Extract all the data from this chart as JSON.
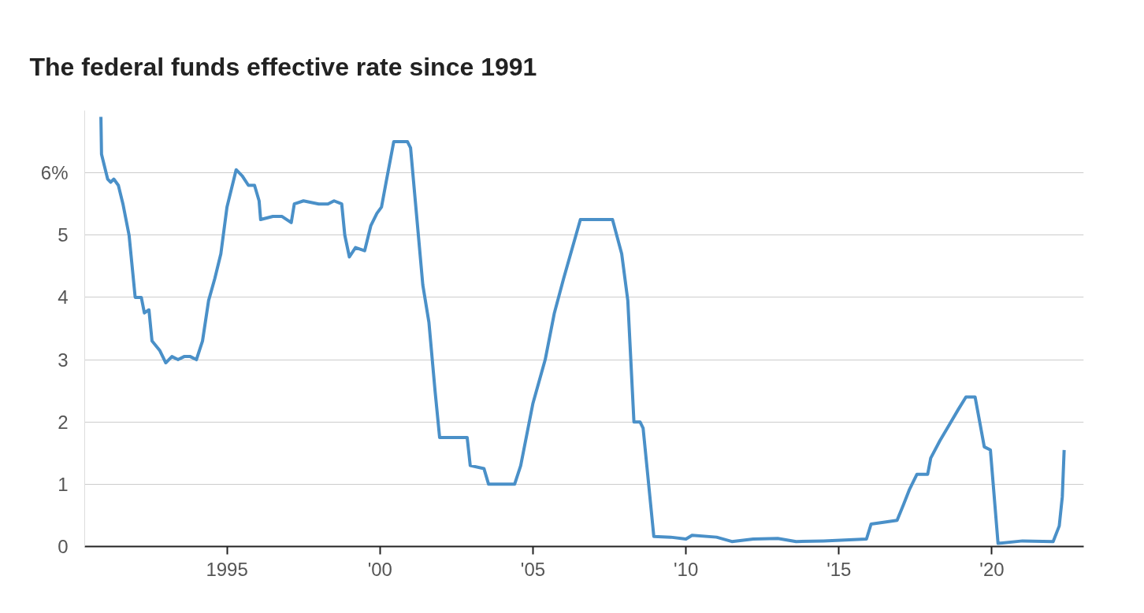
{
  "chart_data": {
    "type": "line",
    "title": "The federal funds effective rate since 1991",
    "x": [
      1990.88,
      1990.9,
      1991.0,
      1991.1,
      1991.2,
      1991.3,
      1991.45,
      1991.6,
      1991.8,
      1992.0,
      1992.2,
      1992.3,
      1992.45,
      1992.55,
      1992.8,
      1993.0,
      1993.2,
      1993.4,
      1993.6,
      1993.8,
      1994.0,
      1994.2,
      1994.4,
      1994.6,
      1994.8,
      1995.0,
      1995.3,
      1995.5,
      1995.7,
      1995.9,
      1996.05,
      1996.1,
      1996.5,
      1996.8,
      1997.1,
      1997.2,
      1997.5,
      1998.0,
      1998.3,
      1998.5,
      1998.75,
      1998.85,
      1999.0,
      1999.2,
      1999.5,
      1999.7,
      1999.9,
      2000.05,
      2000.2,
      2000.45,
      2000.9,
      2001.0,
      2001.2,
      2001.4,
      2001.6,
      2001.8,
      2001.95,
      2002.2,
      2002.85,
      2002.95,
      2003.4,
      2003.55,
      2004.4,
      2004.6,
      2005.0,
      2005.4,
      2005.7,
      2006.0,
      2006.55,
      2007.6,
      2007.9,
      2008.1,
      2008.3,
      2008.5,
      2008.6,
      2008.95,
      2009.5,
      2010.0,
      2010.2,
      2011.0,
      2011.5,
      2012.2,
      2013.0,
      2013.6,
      2014.5,
      2015.9,
      2016.05,
      2016.9,
      2017.1,
      2017.3,
      2017.55,
      2017.9,
      2018.0,
      2018.3,
      2018.6,
      2018.9,
      2019.15,
      2019.45,
      2019.6,
      2019.75,
      2019.95,
      2020.2,
      2021.0,
      2022.0,
      2022.2,
      2022.3,
      2022.36
    ],
    "series": [
      {
        "color": "#4a90c8",
        "values": [
          6.9,
          6.3,
          6.1,
          5.9,
          5.85,
          5.9,
          5.8,
          5.5,
          5.0,
          4.0,
          4.0,
          3.75,
          3.8,
          3.3,
          3.15,
          2.95,
          3.05,
          3.0,
          3.05,
          3.05,
          3.0,
          3.3,
          3.95,
          4.3,
          4.7,
          5.45,
          6.05,
          5.95,
          5.8,
          5.8,
          5.55,
          5.25,
          5.3,
          5.3,
          5.2,
          5.5,
          5.55,
          5.5,
          5.5,
          5.55,
          5.5,
          5.0,
          4.65,
          4.8,
          4.75,
          5.15,
          5.35,
          5.45,
          5.85,
          6.5,
          6.5,
          6.4,
          5.3,
          4.2,
          3.6,
          2.5,
          1.75,
          1.75,
          1.75,
          1.3,
          1.25,
          1.0,
          1.0,
          1.3,
          2.3,
          3.0,
          3.75,
          4.3,
          5.25,
          5.25,
          4.7,
          3.95,
          2.0,
          2.0,
          1.9,
          0.16,
          0.15,
          0.12,
          0.18,
          0.15,
          0.08,
          0.12,
          0.13,
          0.08,
          0.09,
          0.12,
          0.36,
          0.42,
          0.66,
          0.91,
          1.16,
          1.16,
          1.42,
          1.7,
          1.95,
          2.2,
          2.4,
          2.4,
          2.0,
          1.6,
          1.55,
          0.05,
          0.09,
          0.08,
          0.33,
          0.8,
          1.55
        ]
      }
    ],
    "xlim": [
      1990.35,
      2023.0
    ],
    "ylim": [
      0,
      7
    ],
    "xticks": [
      {
        "value": 1995,
        "label": "1995"
      },
      {
        "value": 2000,
        "label": "'00"
      },
      {
        "value": 2005,
        "label": "'05"
      },
      {
        "value": 2010,
        "label": "'10"
      },
      {
        "value": 2015,
        "label": "'15"
      },
      {
        "value": 2020,
        "label": "'20"
      }
    ],
    "yticks": [
      0,
      1,
      2,
      3,
      4,
      5,
      {
        "value": 6,
        "label": "6%"
      }
    ],
    "grid": "y",
    "line_style": "solid"
  }
}
